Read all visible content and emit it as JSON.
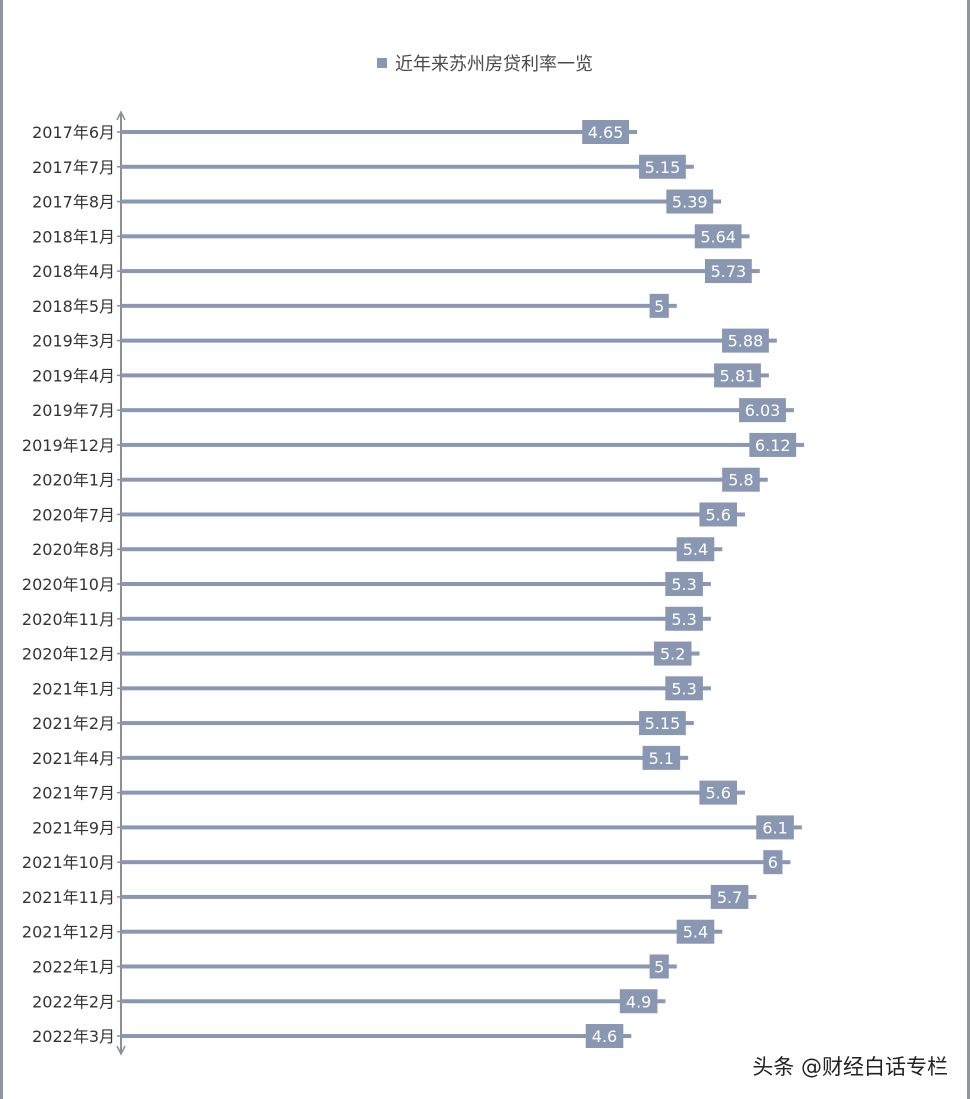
{
  "colors": {
    "bar": "#8a97b3",
    "label_text": "#ffffff",
    "axis": "#8a8f99",
    "tick_text": "#333333"
  },
  "legend": {
    "label": "近年来苏州房贷利率一览"
  },
  "watermark": "头条 @财经白话专栏",
  "chart_data": {
    "type": "bar",
    "orientation": "horizontal",
    "categories": [
      "2017年6月",
      "2017年7月",
      "2017年8月",
      "2018年1月",
      "2018年4月",
      "2018年5月",
      "2019年3月",
      "2019年4月",
      "2019年7月",
      "2019年12月",
      "2020年1月",
      "2020年7月",
      "2020年8月",
      "2020年10月",
      "2020年11月",
      "2020年12月",
      "2021年1月",
      "2021年2月",
      "2021年4月",
      "2021年7月",
      "2021年9月",
      "2021年10月",
      "2021年11月",
      "2021年12月",
      "2022年1月",
      "2022年2月",
      "2022年3月"
    ],
    "values": [
      4.65,
      5.15,
      5.39,
      5.64,
      5.73,
      5,
      5.88,
      5.81,
      6.03,
      6.12,
      5.8,
      5.6,
      5.4,
      5.3,
      5.3,
      5.2,
      5.3,
      5.15,
      5.1,
      5.6,
      6.1,
      6,
      5.7,
      5.4,
      5,
      4.9,
      4.6
    ],
    "data_labels": [
      "4.65",
      "5.15",
      "5.39",
      "5.64",
      "5.73",
      "5",
      "5.88",
      "5.81",
      "6.03",
      "6.12",
      "5.8",
      "5.6",
      "5.4",
      "5.3",
      "5.3",
      "5.2",
      "5.3",
      "5.15",
      "5.1",
      "5.6",
      "6.1",
      "6",
      "5.7",
      "5.4",
      "5",
      "4.9",
      "4.6"
    ],
    "series": [
      {
        "name": "近年来苏州房贷利率一览"
      }
    ],
    "legend_position": "top-center",
    "grid": false
  }
}
